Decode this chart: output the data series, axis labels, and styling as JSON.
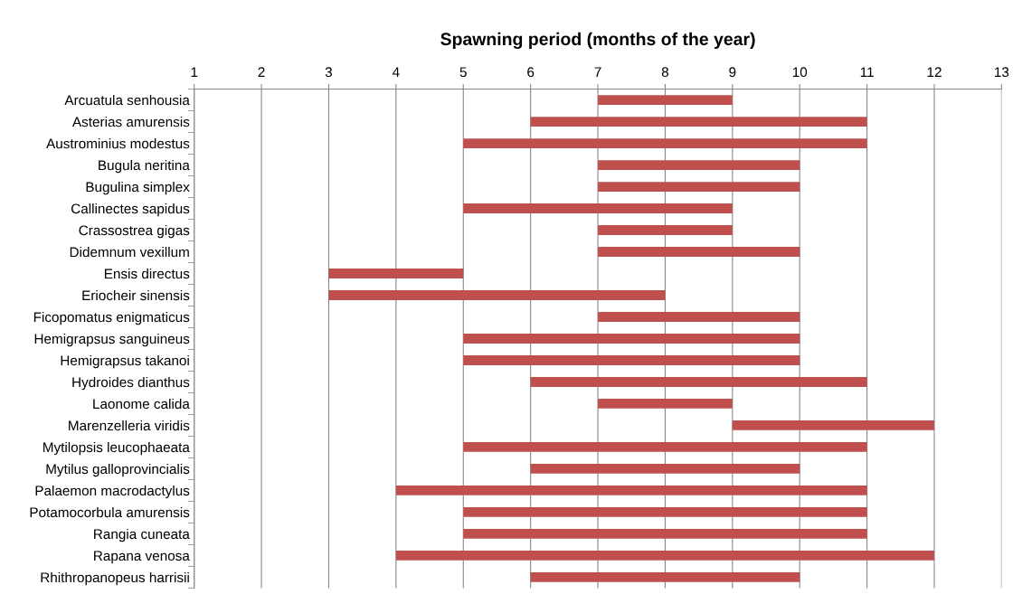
{
  "chart_data": {
    "type": "bar",
    "orientation": "horizontal",
    "title": "Spawning period (months of the year)",
    "categories": [
      "Arcuatula senhousia",
      "Asterias amurensis",
      "Austrominius modestus",
      "Bugula neritina",
      "Bugulina simplex",
      "Callinectes sapidus",
      "Crassostrea gigas",
      "Didemnum vexillum",
      "Ensis directus",
      "Eriocheir sinensis",
      "Ficopomatus enigmaticus",
      "Hemigrapsus sanguineus",
      "Hemigrapsus takanoi",
      "Hydroides dianthus",
      "Laonome calida",
      "Marenzelleria viridis",
      "Mytilopsis leucophaeata",
      "Mytilus galloprovincialis",
      "Palaemon macrodactylus",
      "Potamocorbula amurensis",
      "Rangia cuneata",
      "Rapana venosa",
      "Rhithropanopeus harrisii"
    ],
    "base": [
      7,
      6,
      5,
      7,
      7,
      5,
      7,
      7,
      3,
      3,
      7,
      5,
      5,
      6,
      7,
      9,
      5,
      6,
      4,
      5,
      5,
      4,
      6
    ],
    "values": [
      2,
      5,
      6,
      3,
      3,
      4,
      2,
      3,
      2,
      5,
      3,
      5,
      5,
      5,
      2,
      3,
      6,
      4,
      7,
      6,
      6,
      8,
      4
    ],
    "color": "#c0504d",
    "xlim": [
      1,
      13
    ],
    "xticks": [
      1,
      2,
      3,
      4,
      5,
      6,
      7,
      8,
      9,
      10,
      11,
      12,
      13
    ],
    "grid": "x"
  }
}
